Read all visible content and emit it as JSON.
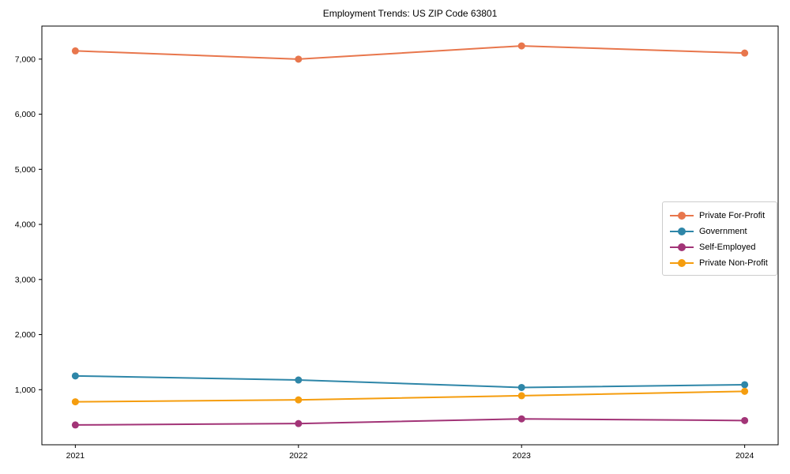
{
  "chart_data": {
    "type": "line",
    "title": "Employment Trends: US ZIP Code 63801",
    "xlabel": "",
    "ylabel": "",
    "categories": [
      "2021",
      "2022",
      "2023",
      "2024"
    ],
    "series": [
      {
        "name": "Private For-Profit",
        "color": "#e8764c",
        "values": [
          7150,
          7000,
          7240,
          7110
        ]
      },
      {
        "name": "Government",
        "color": "#2e86a8",
        "values": [
          1250,
          1175,
          1040,
          1090
        ]
      },
      {
        "name": "Self-Employed",
        "color": "#a23477",
        "values": [
          360,
          385,
          470,
          440
        ]
      },
      {
        "name": "Private Non-Profit",
        "color": "#f59d0e",
        "values": [
          780,
          815,
          890,
          970
        ]
      }
    ],
    "ylim": [
      0,
      7600
    ],
    "yticks": [
      1000,
      2000,
      3000,
      4000,
      5000,
      6000,
      7000
    ],
    "ytick_labels": [
      "1,000",
      "2,000",
      "3,000",
      "4,000",
      "5,000",
      "6,000",
      "7,000"
    ],
    "grid": false,
    "marker": "circle",
    "legend_position": "center right",
    "frame": "full-box",
    "axis_color": "#000000"
  }
}
